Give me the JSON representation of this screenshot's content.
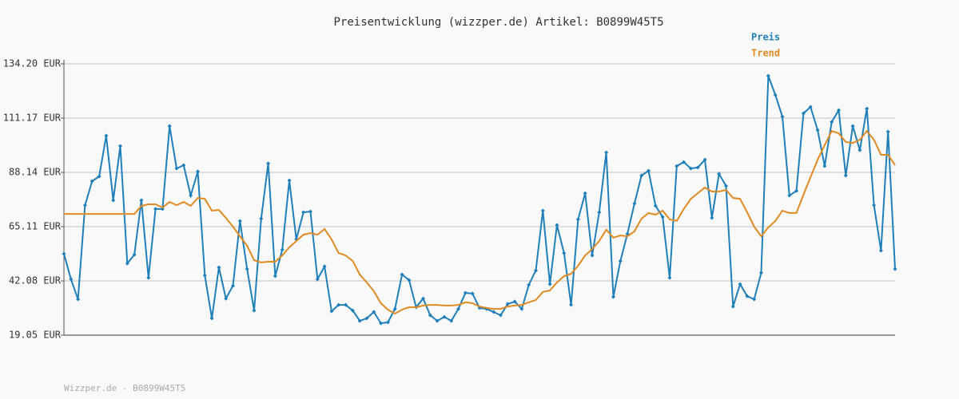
{
  "chart_data": {
    "type": "line",
    "title": "Preisentwicklung (wizzper.de) Artikel: B0899W45T5",
    "footer": "Wizzper.de - B0899W45T5",
    "ylim": [
      19.05,
      134.2
    ],
    "yticks": [
      {
        "value": 19.05,
        "label": "19.05 EUR"
      },
      {
        "value": 42.08,
        "label": "42.08 EUR"
      },
      {
        "value": 65.11,
        "label": "65.11 EUR"
      },
      {
        "value": 88.14,
        "label": "88.14 EUR"
      },
      {
        "value": 111.17,
        "label": "111.17 EUR"
      },
      {
        "value": 134.2,
        "label": "134.20 EUR"
      }
    ],
    "grid": true,
    "legend": "top-right",
    "series": [
      {
        "name": "Preis",
        "color": "#1f7fba",
        "markers": true,
        "values": [
          53.6,
          42.8,
          34.3,
          74.2,
          84.4,
          86.4,
          103.7,
          76.3,
          99.3,
          49.5,
          53.2,
          76.3,
          43.4,
          72.6,
          72.6,
          107.8,
          89.8,
          91.2,
          78.3,
          88.5,
          44.4,
          26.2,
          47.8,
          34.6,
          40.0,
          67.5,
          47.1,
          29.5,
          68.5,
          91.9,
          44.1,
          55.3,
          84.7,
          59.7,
          71.2,
          71.5,
          42.8,
          48.2,
          29.2,
          31.9,
          31.9,
          29.5,
          25.1,
          26.2,
          28.9,
          24.1,
          24.5,
          30.2,
          44.8,
          42.4,
          30.9,
          34.6,
          27.5,
          25.1,
          26.8,
          25.1,
          30.2,
          37.0,
          36.7,
          30.6,
          30.2,
          28.9,
          27.5,
          32.3,
          33.3,
          30.2,
          40.4,
          46.5,
          71.9,
          40.7,
          65.8,
          53.9,
          31.9,
          68.2,
          79.3,
          52.9,
          71.2,
          96.6,
          35.3,
          50.5,
          62.1,
          74.9,
          86.8,
          88.8,
          73.9,
          69.2,
          43.4,
          90.8,
          92.5,
          89.8,
          90.2,
          93.5,
          68.8,
          87.5,
          82.4,
          31.2,
          40.7,
          35.6,
          34.3,
          45.5,
          129.1,
          121.0,
          111.8,
          78.3,
          80.3,
          113.2,
          115.9,
          106.1,
          90.8,
          109.5,
          114.5,
          86.8,
          107.8,
          97.6,
          115.2,
          74.2,
          54.9,
          105.4,
          47.1
        ]
      },
      {
        "name": "Trend",
        "color": "#e08a22",
        "markers": false,
        "values": [
          70.5,
          70.5,
          70.5,
          70.5,
          70.5,
          70.5,
          70.5,
          70.5,
          70.5,
          70.5,
          70.5,
          73.9,
          74.6,
          74.6,
          73.2,
          75.6,
          74.2,
          75.6,
          73.9,
          77.3,
          76.9,
          71.9,
          72.2,
          68.8,
          65.1,
          61.0,
          57.0,
          50.9,
          49.9,
          50.2,
          50.2,
          52.9,
          56.3,
          59.0,
          61.7,
          62.4,
          61.7,
          64.1,
          59.7,
          53.9,
          52.9,
          50.5,
          44.8,
          41.4,
          37.7,
          32.6,
          29.9,
          28.2,
          29.9,
          30.9,
          30.9,
          31.6,
          31.9,
          31.9,
          31.6,
          31.6,
          31.9,
          33.0,
          32.6,
          31.2,
          30.6,
          30.2,
          30.2,
          31.2,
          31.6,
          31.9,
          33.0,
          34.0,
          37.4,
          38.0,
          41.4,
          44.1,
          45.1,
          48.5,
          52.9,
          55.6,
          59.0,
          63.8,
          60.4,
          61.4,
          61.0,
          63.1,
          68.5,
          70.9,
          70.2,
          71.9,
          68.2,
          67.5,
          72.6,
          76.9,
          79.3,
          81.7,
          80.0,
          80.0,
          80.7,
          77.3,
          76.9,
          71.2,
          65.1,
          61.0,
          64.8,
          67.5,
          71.9,
          70.9,
          70.9,
          78.7,
          86.1,
          93.5,
          99.7,
          105.7,
          104.7,
          101.0,
          100.6,
          102.0,
          105.7,
          102.0,
          95.6,
          95.6,
          91.2
        ]
      }
    ]
  }
}
